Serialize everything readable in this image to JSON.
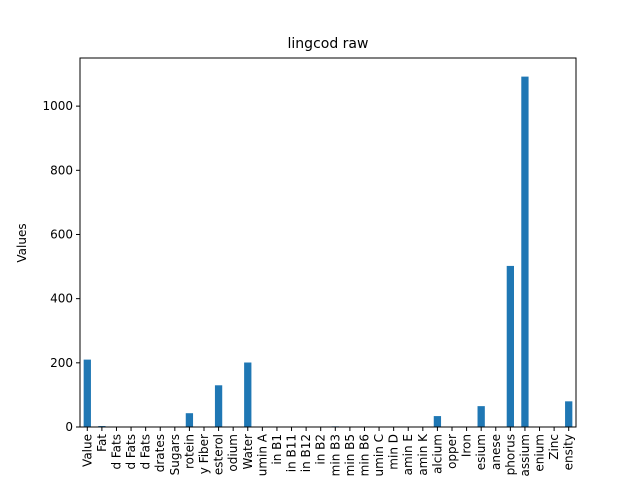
{
  "chart_data": {
    "type": "bar",
    "title": "lingcod raw",
    "xlabel": "",
    "ylabel": "Values",
    "ylim": [
      0,
      1150
    ],
    "yticks": [
      0,
      200,
      400,
      600,
      800,
      1000
    ],
    "grid": false,
    "legend": "none",
    "bar_color": "#1f77b4",
    "categories": [
      "Value",
      "Fat",
      "d Fats",
      "d Fats",
      "d Fats",
      "drates",
      "Sugars",
      "rotein",
      "y Fiber",
      "esterol",
      "odium",
      "Water",
      "umin A",
      "in B1",
      "in B11",
      "in B12",
      "in B2",
      "min B3",
      "min B5",
      "min B6",
      "umin C",
      "min D",
      "amin E",
      "amin K",
      "alcium",
      "opper",
      "Iron",
      "esium",
      "anese",
      "phorus",
      "assium",
      "enium",
      "Zinc",
      "ensity"
    ],
    "values": [
      210,
      3,
      0,
      0,
      0,
      0,
      0,
      43,
      0,
      130,
      0,
      201,
      0,
      0,
      0,
      0,
      0,
      2,
      0,
      0,
      0,
      0,
      0,
      0,
      34,
      0,
      0,
      65,
      0,
      502,
      1092,
      0,
      0,
      80
    ]
  }
}
